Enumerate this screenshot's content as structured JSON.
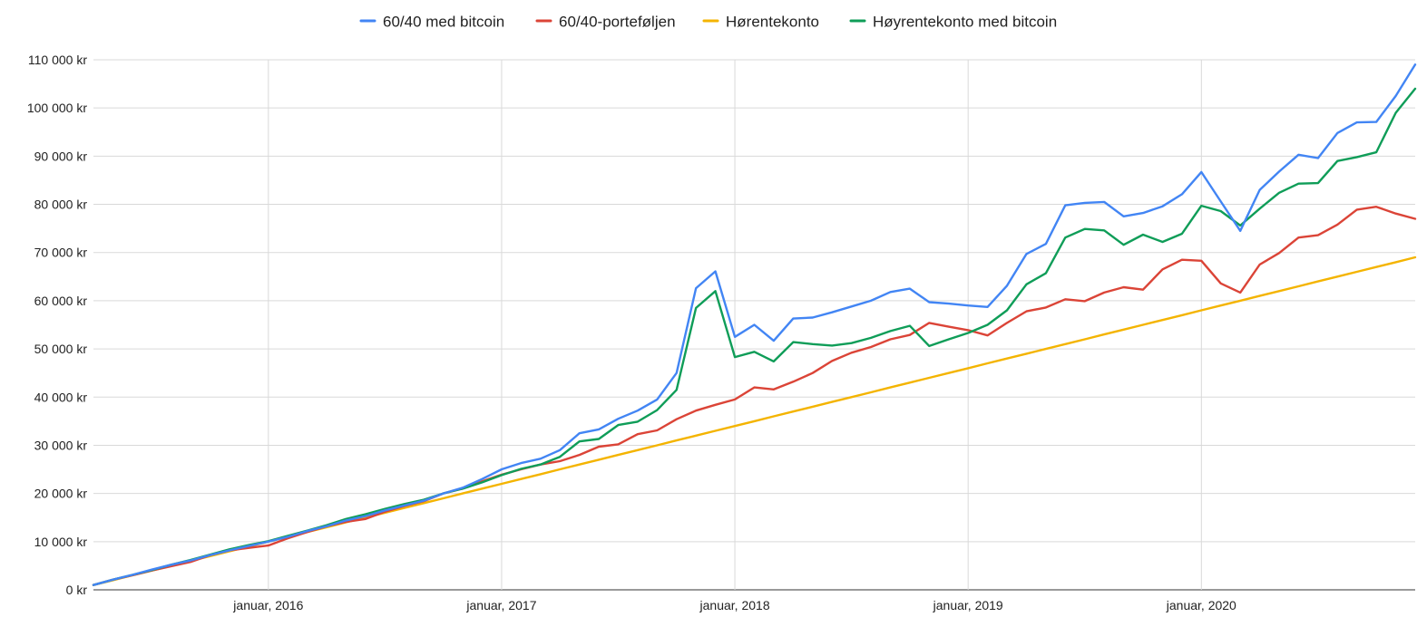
{
  "chart_data": {
    "type": "line",
    "title": "",
    "xlabel": "",
    "ylabel": "",
    "legend_position": "top",
    "grid": true,
    "ylim": [
      0,
      110000
    ],
    "x_start": "2015-04",
    "x_end": "2020-12",
    "x_ticks": [
      {
        "date": "2016-01",
        "label": "januar, 2016"
      },
      {
        "date": "2017-01",
        "label": "januar, 2017"
      },
      {
        "date": "2018-01",
        "label": "januar, 2018"
      },
      {
        "date": "2019-01",
        "label": "januar, 2019"
      },
      {
        "date": "2020-01",
        "label": "januar, 2020"
      }
    ],
    "y_ticks": [
      {
        "value": 0,
        "label": "0 kr"
      },
      {
        "value": 10000,
        "label": "10 000 kr"
      },
      {
        "value": 20000,
        "label": "20 000 kr"
      },
      {
        "value": 30000,
        "label": "30 000 kr"
      },
      {
        "value": 40000,
        "label": "40 000 kr"
      },
      {
        "value": 50000,
        "label": "50 000 kr"
      },
      {
        "value": 60000,
        "label": "60 000 kr"
      },
      {
        "value": 70000,
        "label": "70 000 kr"
      },
      {
        "value": 80000,
        "label": "80 000 kr"
      },
      {
        "value": 90000,
        "label": "90 000 kr"
      },
      {
        "value": 100000,
        "label": "100 000 kr"
      },
      {
        "value": 110000,
        "label": "110 000 kr"
      }
    ],
    "x": [
      "2015-04",
      "2015-05",
      "2015-06",
      "2015-07",
      "2015-08",
      "2015-09",
      "2015-10",
      "2015-11",
      "2015-12",
      "2016-01",
      "2016-02",
      "2016-03",
      "2016-04",
      "2016-05",
      "2016-06",
      "2016-07",
      "2016-08",
      "2016-09",
      "2016-10",
      "2016-11",
      "2016-12",
      "2017-01",
      "2017-02",
      "2017-03",
      "2017-04",
      "2017-05",
      "2017-06",
      "2017-07",
      "2017-08",
      "2017-09",
      "2017-10",
      "2017-11",
      "2017-12",
      "2018-01",
      "2018-02",
      "2018-03",
      "2018-04",
      "2018-05",
      "2018-06",
      "2018-07",
      "2018-08",
      "2018-09",
      "2018-10",
      "2018-11",
      "2018-12",
      "2019-01",
      "2019-02",
      "2019-03",
      "2019-04",
      "2019-05",
      "2019-06",
      "2019-07",
      "2019-08",
      "2019-09",
      "2019-10",
      "2019-11",
      "2019-12",
      "2020-01",
      "2020-02",
      "2020-03",
      "2020-04",
      "2020-05",
      "2020-06",
      "2020-07",
      "2020-08",
      "2020-09",
      "2020-10",
      "2020-11",
      "2020-12"
    ],
    "series": [
      {
        "name": "60/40 med bitcoin",
        "color": "#4285f4",
        "values": [
          1000,
          2100,
          3100,
          4200,
          5200,
          6100,
          7200,
          8200,
          9100,
          10000,
          11000,
          12200,
          13200,
          14400,
          15300,
          16500,
          17500,
          18500,
          20000,
          21200,
          23000,
          25000,
          26300,
          27200,
          29000,
          32500,
          33300,
          35500,
          37200,
          39500,
          45000,
          62600,
          66100,
          52500,
          55000,
          51700,
          56300,
          56500,
          57600,
          58800,
          60000,
          61800,
          62500,
          59700,
          59400,
          59000,
          58700,
          63100,
          69700,
          71800,
          79800,
          80300,
          80500,
          77500,
          78200,
          79600,
          82100,
          86700,
          80600,
          74500,
          83000,
          86800,
          90300,
          89600,
          94800,
          97000,
          97100,
          102500,
          109000
        ]
      },
      {
        "name": "60/40-porteføljen",
        "color": "#db4437",
        "values": [
          1000,
          2100,
          3000,
          4000,
          4900,
          5800,
          7200,
          8200,
          8700,
          9200,
          10700,
          12000,
          13200,
          14100,
          14700,
          16200,
          17400,
          18400,
          20000,
          21000,
          22500,
          23900,
          25000,
          26000,
          26700,
          28000,
          29700,
          30200,
          32300,
          33100,
          35400,
          37200,
          38400,
          39500,
          42000,
          41600,
          43200,
          45000,
          47500,
          49200,
          50400,
          52000,
          52900,
          55400,
          54600,
          53900,
          52800,
          55400,
          57800,
          58600,
          60300,
          59900,
          61700,
          62800,
          62300,
          66500,
          68500,
          68300,
          63600,
          61700,
          67500,
          69900,
          73100,
          73600,
          75800,
          78900,
          79500,
          78100,
          77000
        ]
      },
      {
        "name": "Hørentekonto",
        "color": "#f4b400",
        "values": [
          1000,
          2000,
          3000,
          4000,
          5000,
          6000,
          7000,
          8000,
          9000,
          10000,
          11000,
          12000,
          13000,
          14000,
          15000,
          16000,
          17000,
          18000,
          19000,
          20000,
          21000,
          22000,
          23000,
          24000,
          25000,
          26000,
          27000,
          28000,
          29000,
          30000,
          31000,
          32000,
          33000,
          34000,
          35000,
          36000,
          37000,
          38000,
          39000,
          40000,
          41000,
          42000,
          43000,
          44000,
          45000,
          46000,
          47000,
          48000,
          49000,
          50000,
          51000,
          52000,
          53000,
          54000,
          55000,
          56000,
          57000,
          58000,
          59000,
          60000,
          61000,
          62000,
          63000,
          64000,
          65000,
          66000,
          67000,
          68000,
          69000
        ]
      },
      {
        "name": "Høyrentekonto med bitcoin",
        "color": "#0f9d58",
        "values": [
          1000,
          2100,
          3100,
          4100,
          5200,
          6200,
          7300,
          8400,
          9300,
          10100,
          11200,
          12300,
          13400,
          14700,
          15700,
          16800,
          17800,
          18700,
          20000,
          21000,
          22300,
          23800,
          25100,
          26000,
          27600,
          30800,
          31300,
          34200,
          34900,
          37300,
          41500,
          58500,
          62000,
          48300,
          49400,
          47400,
          51400,
          51000,
          50700,
          51200,
          52300,
          53700,
          54800,
          50600,
          52000,
          53300,
          55000,
          58000,
          63400,
          65700,
          73100,
          74900,
          74600,
          71600,
          73700,
          72200,
          73900,
          79700,
          78600,
          75600,
          79100,
          82400,
          84300,
          84400,
          89000,
          89800,
          90800,
          99000,
          104000
        ]
      }
    ]
  }
}
